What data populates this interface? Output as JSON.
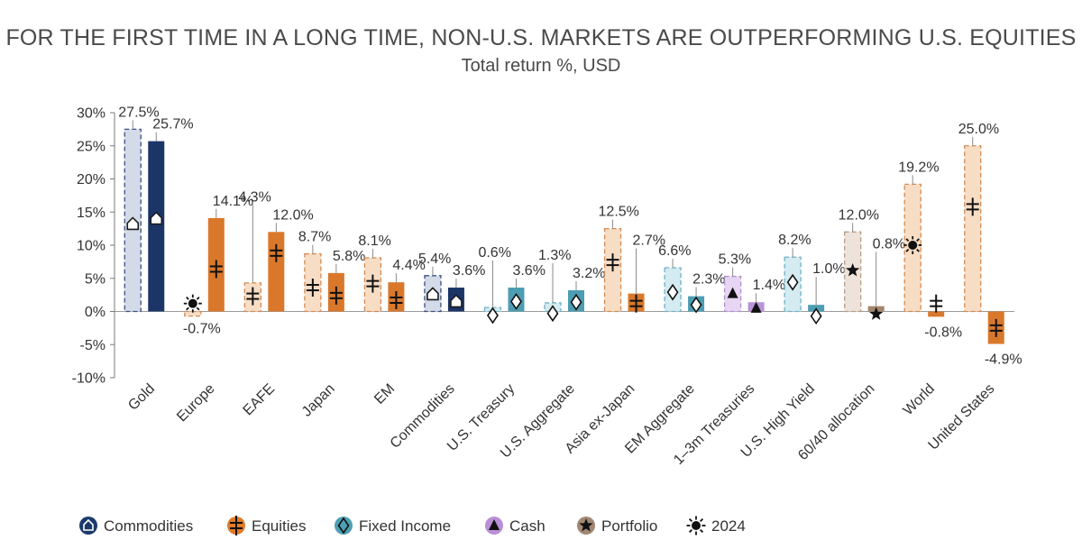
{
  "chart_data": {
    "type": "bar",
    "title": "FOR THE FIRST TIME IN A LONG TIME, NON-U.S. MARKETS ARE OUTPERFORMING U.S. EQUITIES",
    "subtitle": "Total return %, USD",
    "xlabel": "",
    "ylabel": "",
    "ylim": [
      -10,
      30
    ],
    "yticks": [
      30,
      25,
      20,
      15,
      10,
      5,
      0,
      -5,
      -10
    ],
    "ytick_labels": [
      "30%",
      "25%",
      "20%",
      "15%",
      "10%",
      "5%",
      "0%",
      "-5%",
      "-10%"
    ],
    "grid": false,
    "legend_position": "bottom-left",
    "series_2024_marker": "24 year value marker shown on each 2024 (dashed) bar",
    "categories": [
      {
        "name": "Gold",
        "asset_class": "commodities",
        "ytd": 25.7,
        "prior": 27.5,
        "marker_ytd": 14.0,
        "marker_prior": 13.2,
        "label_ytd": "25.7%",
        "label_prior": "27.5%"
      },
      {
        "name": "Europe",
        "asset_class": "equities",
        "ytd": 14.1,
        "prior": -0.7,
        "marker_ytd": 6.4,
        "marker_prior": 1.2,
        "label_ytd": "14.1%",
        "label_prior": "-0.7%"
      },
      {
        "name": "EAFE",
        "asset_class": "equities",
        "ytd": 12.0,
        "prior": 4.3,
        "marker_ytd": 8.8,
        "marker_prior": 2.3,
        "label_ytd": "12.0%",
        "label_prior": "4.3%"
      },
      {
        "name": "Japan",
        "asset_class": "equities",
        "ytd": 5.8,
        "prior": 8.7,
        "marker_ytd": 2.4,
        "marker_prior": 3.6,
        "label_ytd": "5.8%",
        "label_prior": "8.7%"
      },
      {
        "name": "EM",
        "asset_class": "equities",
        "ytd": 4.4,
        "prior": 8.1,
        "marker_ytd": 1.7,
        "marker_prior": 4.2,
        "label_ytd": "4.4%",
        "label_prior": "8.1%"
      },
      {
        "name": "Commodities",
        "asset_class": "commodities",
        "ytd": 3.6,
        "prior": 5.4,
        "marker_ytd": 1.5,
        "marker_prior": 2.6,
        "label_ytd": "3.6%",
        "label_prior": "5.4%"
      },
      {
        "name": "U.S. Treasury",
        "asset_class": "fixed_income",
        "ytd": 3.6,
        "prior": 0.6,
        "marker_ytd": 1.5,
        "marker_prior": -0.6,
        "label_ytd": "3.6%",
        "label_prior": "0.6%"
      },
      {
        "name": "U.S. Aggregate",
        "asset_class": "fixed_income",
        "ytd": 3.2,
        "prior": 1.3,
        "marker_ytd": 1.4,
        "marker_prior": -0.3,
        "label_ytd": "3.2%",
        "label_prior": "1.3%"
      },
      {
        "name": "Asia ex-Japan",
        "asset_class": "equities",
        "ytd": 2.7,
        "prior": 12.5,
        "marker_ytd": 1.2,
        "marker_prior": 7.4,
        "label_ytd": "2.7%",
        "label_prior": "12.5%"
      },
      {
        "name": "EM Aggregate",
        "asset_class": "fixed_income",
        "ytd": 2.3,
        "prior": 6.6,
        "marker_ytd": 1.0,
        "marker_prior": 2.9,
        "label_ytd": "2.3%",
        "label_prior": "6.6%"
      },
      {
        "name": "1–3m Treasuries",
        "asset_class": "cash",
        "ytd": 1.4,
        "prior": 5.3,
        "marker_ytd": 0.5,
        "marker_prior": 2.7,
        "label_ytd": "1.4%",
        "label_prior": "5.3%"
      },
      {
        "name": "U.S. High Yield",
        "asset_class": "fixed_income",
        "ytd": 1.0,
        "prior": 8.2,
        "marker_ytd": -0.7,
        "marker_prior": 4.4,
        "label_ytd": "1.0%",
        "label_prior": "8.2%"
      },
      {
        "name": "60/40 allocation",
        "asset_class": "portfolio",
        "ytd": 0.8,
        "prior": 12.0,
        "marker_ytd": -0.4,
        "marker_prior": 6.2,
        "label_ytd": "0.8%",
        "label_prior": "12.0%"
      },
      {
        "name": "World",
        "asset_class": "equities",
        "ytd": -0.8,
        "prior": 19.2,
        "marker_ytd": 1.2,
        "marker_prior": 10.0,
        "label_ytd": "-0.8%",
        "label_prior": "19.2%"
      },
      {
        "name": "United States",
        "asset_class": "equities",
        "ytd": -4.9,
        "prior": 25.0,
        "marker_ytd": -2.5,
        "marker_prior": 15.8,
        "label_ytd": "-4.9%",
        "label_prior": "25.0%"
      }
    ],
    "legend": [
      {
        "label": "Commodities",
        "icon": "house-marker-icon",
        "color": "#1b3a6b"
      },
      {
        "label": "Equities",
        "icon": "double-cross-marker-icon",
        "color": "#e07b2a"
      },
      {
        "label": "Fixed Income",
        "icon": "diamond-marker-icon",
        "color": "#4f9fb4"
      },
      {
        "label": "Cash",
        "icon": "triangle-marker-icon",
        "color": "#b98fd6"
      },
      {
        "label": "Portfolio",
        "icon": "star-marker-icon",
        "color": "#a08872"
      },
      {
        "label": "2024",
        "icon": "sun-marker-icon",
        "color": "#000000"
      }
    ],
    "colors": {
      "commodities": {
        "solid": "#1b3567",
        "light": "#d3dbe9",
        "dash": "#3b4f7e"
      },
      "equities": {
        "solid": "#d9782b",
        "light": "#f8ddc5",
        "dash": "#d28b53"
      },
      "fixed_income": {
        "solid": "#4c9db2",
        "light": "#d3ebf1",
        "dash": "#6fb2c3"
      },
      "cash": {
        "solid": "#b893d8",
        "light": "#e6d5f3",
        "dash": "#b190cf"
      },
      "portfolio": {
        "solid": "#a3866c",
        "light": "#ede3da",
        "dash": "#b79d86"
      },
      "axis": "#7a7a7a",
      "text": "#333333"
    }
  }
}
